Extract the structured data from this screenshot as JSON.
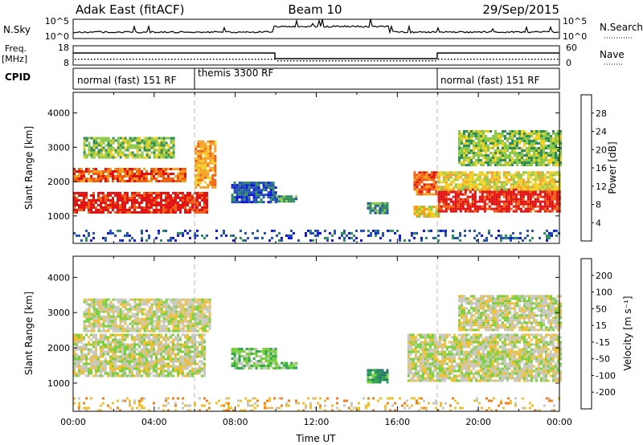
{
  "header": {
    "station": "Adak East (fitACF)",
    "beam": "Beam 10",
    "date": "29/Sep/2015"
  },
  "panels": {
    "nsky": {
      "label": "N.Sky",
      "right_label": "N.Search",
      "tick_top": "10^5",
      "tick_bottom": "10^0",
      "right_tick_top": "10^5",
      "right_tick_bottom": "10^0"
    },
    "freq": {
      "label_top": "Freq.",
      "label_unit": "[MHz]",
      "tick_top": "18",
      "tick_bottom": "8",
      "right_label": "Nave",
      "right_tick_top": "60",
      "right_tick_bottom": "0"
    },
    "cpid": {
      "label": "CPID",
      "segments": [
        {
          "text": "normal (fast) 151 RF",
          "start": 0
        },
        {
          "text": "themis 3300 RF",
          "start": 6
        },
        {
          "text": "normal (fast) 151 RF",
          "start": 18
        }
      ]
    }
  },
  "chart_data": [
    {
      "type": "heatmap",
      "name": "power",
      "ylabel": "Slant Range [km]",
      "xlim": [
        0,
        24
      ],
      "ylim": [
        200,
        4600
      ],
      "yticks": [
        "1000",
        "2000",
        "3000",
        "4000"
      ],
      "colorbar": {
        "label": "Power [dB]",
        "ticks": [
          "4",
          "8",
          "12",
          "16",
          "20",
          "24",
          "28"
        ],
        "colors": [
          "#1010e0",
          "#2050b0",
          "#2e8c5e",
          "#8cc84a",
          "#f0d020",
          "#f5a020",
          "#f06010",
          "#e01010"
        ]
      },
      "regions": [
        {
          "t0": 0.0,
          "t1": 6.6,
          "r0": 1100,
          "r1": 1700,
          "level": 7
        },
        {
          "t0": 0.0,
          "t1": 5.5,
          "r0": 2000,
          "r1": 2400,
          "level": 6
        },
        {
          "t0": 0.5,
          "t1": 5.0,
          "r0": 2700,
          "r1": 3300,
          "level": 3
        },
        {
          "t0": 6.0,
          "t1": 7.0,
          "r0": 1800,
          "r1": 3200,
          "level": 5
        },
        {
          "t0": 7.8,
          "t1": 10.0,
          "r0": 1400,
          "r1": 2000,
          "level": 1
        },
        {
          "t0": 10.0,
          "t1": 11.0,
          "r0": 1400,
          "r1": 1600,
          "level": 2
        },
        {
          "t0": 14.5,
          "t1": 15.5,
          "r0": 1100,
          "r1": 1400,
          "level": 2
        },
        {
          "t0": 16.8,
          "t1": 18.0,
          "r0": 1000,
          "r1": 1300,
          "level": 4
        },
        {
          "t0": 16.8,
          "t1": 18.0,
          "r0": 1600,
          "r1": 2300,
          "level": 6
        },
        {
          "t0": 18.0,
          "t1": 24.0,
          "r0": 1100,
          "r1": 1800,
          "level": 7
        },
        {
          "t0": 18.0,
          "t1": 24.0,
          "r0": 1800,
          "r1": 2300,
          "level": 4
        },
        {
          "t0": 19.0,
          "t1": 24.0,
          "r0": 2500,
          "r1": 3500,
          "level": 3
        },
        {
          "t0": 0.0,
          "t1": 24.0,
          "r0": 250,
          "r1": 600,
          "level": 1
        }
      ]
    },
    {
      "type": "heatmap",
      "name": "velocity",
      "xlabel": "Time UT",
      "ylabel": "Slant Range [km]",
      "xlim": [
        0,
        24
      ],
      "ylim": [
        200,
        4600
      ],
      "xticks": [
        "00:00",
        "04:00",
        "08:00",
        "12:00",
        "16:00",
        "20:00",
        "00:00"
      ],
      "yticks": [
        "1000",
        "2000",
        "3000",
        "4000"
      ],
      "colorbar": {
        "label": "Velocity [m s⁻¹]",
        "ticks": [
          "200",
          "100",
          "50",
          "15",
          "-15",
          "-50",
          "-100",
          "-200"
        ],
        "colors": [
          "#1a3aa8",
          "#2a7a6a",
          "#2aa84a",
          "#7ad03a",
          "#c8c8c0",
          "#f0c030",
          "#f08020",
          "#e84010",
          "#e01010"
        ]
      },
      "regions": [
        {
          "t0": 0.0,
          "t1": 6.5,
          "r0": 1200,
          "r1": 2400,
          "level": 4
        },
        {
          "t0": 0.5,
          "t1": 6.8,
          "r0": 2500,
          "r1": 3400,
          "level": 4
        },
        {
          "t0": 7.8,
          "t1": 10.0,
          "r0": 1400,
          "r1": 2000,
          "level": 3
        },
        {
          "t0": 10.0,
          "t1": 11.0,
          "r0": 1400,
          "r1": 1600,
          "level": 3
        },
        {
          "t0": 14.5,
          "t1": 15.5,
          "r0": 1000,
          "r1": 1400,
          "level": 2
        },
        {
          "t0": 16.5,
          "t1": 24.0,
          "r0": 1100,
          "r1": 2400,
          "level": 4
        },
        {
          "t0": 19.0,
          "t1": 24.0,
          "r0": 2500,
          "r1": 3500,
          "level": 4
        },
        {
          "t0": 0.0,
          "t1": 24.0,
          "r0": 250,
          "r1": 600,
          "level": 5
        }
      ]
    }
  ]
}
